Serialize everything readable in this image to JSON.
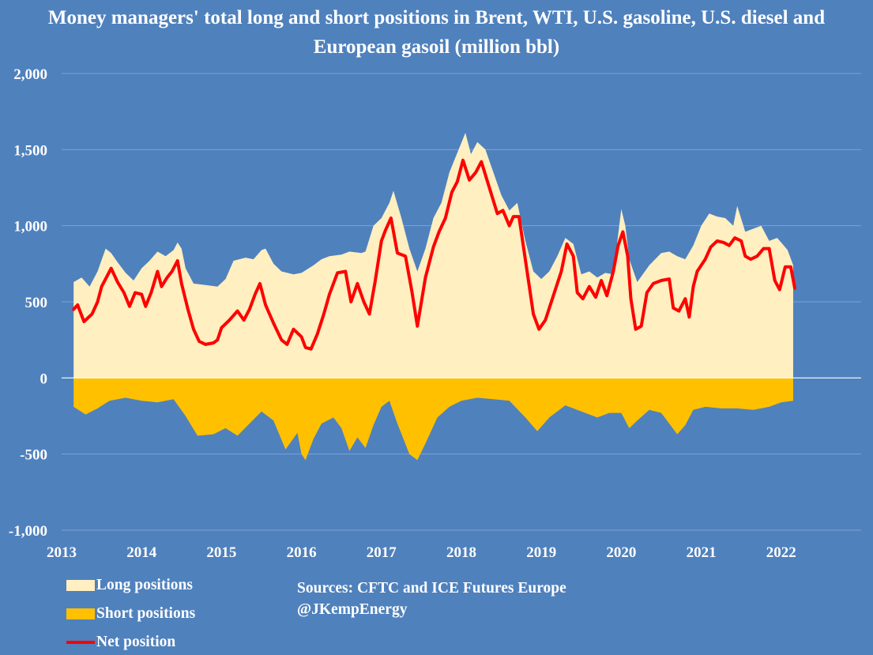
{
  "chart_data": {
    "type": "area",
    "title": "Money managers' total long and short positions in Brent, WTI, U.S. gasoline, U.S. diesel and European gasoil  (million bbl)",
    "xlabel": "",
    "ylabel": "",
    "xlim": [
      2013,
      2023
    ],
    "ylim": [
      -1000,
      2000
    ],
    "y_ticks": [
      2000,
      1500,
      1000,
      500,
      0,
      -500,
      -1000
    ],
    "y_tick_labels": [
      "2,000",
      "1,500",
      "1,000",
      "500",
      "0",
      "-500",
      "-1,000"
    ],
    "x_ticks": [
      2013,
      2014,
      2015,
      2016,
      2017,
      2018,
      2019,
      2020,
      2021,
      2022
    ],
    "x_tick_labels": [
      "2013",
      "2014",
      "2015",
      "2016",
      "2017",
      "2018",
      "2019",
      "2020",
      "2021",
      "2022"
    ],
    "grid": true,
    "legend_position": "bottom-left",
    "series": [
      {
        "name": "Long positions",
        "kind": "area",
        "color": "#ffefc1",
        "points": [
          [
            2013.15,
            630
          ],
          [
            2013.25,
            660
          ],
          [
            2013.35,
            600
          ],
          [
            2013.45,
            700
          ],
          [
            2013.55,
            850
          ],
          [
            2013.62,
            820
          ],
          [
            2013.7,
            760
          ],
          [
            2013.8,
            690
          ],
          [
            2013.9,
            640
          ],
          [
            2014.0,
            720
          ],
          [
            2014.1,
            770
          ],
          [
            2014.2,
            830
          ],
          [
            2014.3,
            800
          ],
          [
            2014.4,
            840
          ],
          [
            2014.45,
            890
          ],
          [
            2014.5,
            850
          ],
          [
            2014.55,
            720
          ],
          [
            2014.65,
            620
          ],
          [
            2014.8,
            610
          ],
          [
            2014.95,
            600
          ],
          [
            2015.05,
            650
          ],
          [
            2015.15,
            770
          ],
          [
            2015.3,
            790
          ],
          [
            2015.4,
            780
          ],
          [
            2015.5,
            840
          ],
          [
            2015.55,
            850
          ],
          [
            2015.65,
            750
          ],
          [
            2015.75,
            700
          ],
          [
            2015.9,
            680
          ],
          [
            2016.0,
            690
          ],
          [
            2016.15,
            740
          ],
          [
            2016.25,
            780
          ],
          [
            2016.35,
            800
          ],
          [
            2016.5,
            810
          ],
          [
            2016.6,
            830
          ],
          [
            2016.75,
            820
          ],
          [
            2016.8,
            830
          ],
          [
            2016.9,
            1000
          ],
          [
            2017.0,
            1050
          ],
          [
            2017.1,
            1150
          ],
          [
            2017.15,
            1230
          ],
          [
            2017.25,
            1050
          ],
          [
            2017.35,
            850
          ],
          [
            2017.45,
            700
          ],
          [
            2017.55,
            850
          ],
          [
            2017.65,
            1050
          ],
          [
            2017.75,
            1150
          ],
          [
            2017.85,
            1350
          ],
          [
            2017.95,
            1480
          ],
          [
            2018.05,
            1610
          ],
          [
            2018.12,
            1470
          ],
          [
            2018.2,
            1550
          ],
          [
            2018.3,
            1500
          ],
          [
            2018.4,
            1350
          ],
          [
            2018.5,
            1200
          ],
          [
            2018.6,
            1100
          ],
          [
            2018.7,
            1150
          ],
          [
            2018.8,
            900
          ],
          [
            2018.9,
            700
          ],
          [
            2019.0,
            650
          ],
          [
            2019.1,
            700
          ],
          [
            2019.2,
            800
          ],
          [
            2019.3,
            920
          ],
          [
            2019.4,
            880
          ],
          [
            2019.5,
            680
          ],
          [
            2019.6,
            700
          ],
          [
            2019.7,
            660
          ],
          [
            2019.8,
            690
          ],
          [
            2019.9,
            680
          ],
          [
            2020.0,
            1110
          ],
          [
            2020.05,
            1000
          ],
          [
            2020.1,
            780
          ],
          [
            2020.2,
            630
          ],
          [
            2020.35,
            740
          ],
          [
            2020.5,
            820
          ],
          [
            2020.6,
            830
          ],
          [
            2020.7,
            800
          ],
          [
            2020.8,
            780
          ],
          [
            2020.9,
            870
          ],
          [
            2021.0,
            1000
          ],
          [
            2021.1,
            1080
          ],
          [
            2021.2,
            1060
          ],
          [
            2021.3,
            1050
          ],
          [
            2021.4,
            1000
          ],
          [
            2021.45,
            1130
          ],
          [
            2021.55,
            960
          ],
          [
            2021.65,
            980
          ],
          [
            2021.75,
            1000
          ],
          [
            2021.85,
            900
          ],
          [
            2021.95,
            920
          ],
          [
            2022.0,
            890
          ],
          [
            2022.08,
            840
          ],
          [
            2022.15,
            740
          ]
        ]
      },
      {
        "name": "Short positions",
        "kind": "area",
        "color": "#ffc000",
        "points": [
          [
            2013.15,
            -190
          ],
          [
            2013.3,
            -240
          ],
          [
            2013.45,
            -200
          ],
          [
            2013.6,
            -150
          ],
          [
            2013.8,
            -130
          ],
          [
            2014.0,
            -150
          ],
          [
            2014.2,
            -160
          ],
          [
            2014.4,
            -140
          ],
          [
            2014.55,
            -250
          ],
          [
            2014.7,
            -380
          ],
          [
            2014.9,
            -370
          ],
          [
            2015.05,
            -330
          ],
          [
            2015.2,
            -380
          ],
          [
            2015.35,
            -300
          ],
          [
            2015.5,
            -220
          ],
          [
            2015.65,
            -280
          ],
          [
            2015.8,
            -470
          ],
          [
            2015.95,
            -360
          ],
          [
            2016.0,
            -500
          ],
          [
            2016.05,
            -540
          ],
          [
            2016.15,
            -400
          ],
          [
            2016.25,
            -300
          ],
          [
            2016.4,
            -260
          ],
          [
            2016.5,
            -330
          ],
          [
            2016.6,
            -480
          ],
          [
            2016.7,
            -390
          ],
          [
            2016.8,
            -460
          ],
          [
            2016.9,
            -310
          ],
          [
            2017.0,
            -190
          ],
          [
            2017.1,
            -150
          ],
          [
            2017.2,
            -300
          ],
          [
            2017.35,
            -500
          ],
          [
            2017.45,
            -540
          ],
          [
            2017.55,
            -430
          ],
          [
            2017.7,
            -260
          ],
          [
            2017.85,
            -190
          ],
          [
            2018.0,
            -150
          ],
          [
            2018.2,
            -130
          ],
          [
            2018.4,
            -140
          ],
          [
            2018.6,
            -150
          ],
          [
            2018.8,
            -260
          ],
          [
            2018.95,
            -350
          ],
          [
            2019.1,
            -260
          ],
          [
            2019.3,
            -180
          ],
          [
            2019.5,
            -220
          ],
          [
            2019.7,
            -260
          ],
          [
            2019.85,
            -230
          ],
          [
            2020.0,
            -230
          ],
          [
            2020.1,
            -330
          ],
          [
            2020.2,
            -280
          ],
          [
            2020.35,
            -210
          ],
          [
            2020.5,
            -230
          ],
          [
            2020.6,
            -300
          ],
          [
            2020.7,
            -370
          ],
          [
            2020.8,
            -310
          ],
          [
            2020.9,
            -210
          ],
          [
            2021.05,
            -190
          ],
          [
            2021.25,
            -200
          ],
          [
            2021.45,
            -200
          ],
          [
            2021.65,
            -210
          ],
          [
            2021.85,
            -190
          ],
          [
            2022.0,
            -160
          ],
          [
            2022.15,
            -150
          ]
        ]
      },
      {
        "name": "Net position",
        "kind": "line",
        "color": "#ff0000",
        "points": [
          [
            2013.15,
            450
          ],
          [
            2013.2,
            480
          ],
          [
            2013.28,
            370
          ],
          [
            2013.38,
            420
          ],
          [
            2013.45,
            500
          ],
          [
            2013.5,
            600
          ],
          [
            2013.55,
            650
          ],
          [
            2013.62,
            720
          ],
          [
            2013.7,
            630
          ],
          [
            2013.78,
            560
          ],
          [
            2013.85,
            470
          ],
          [
            2013.92,
            560
          ],
          [
            2014.0,
            550
          ],
          [
            2014.05,
            470
          ],
          [
            2014.12,
            560
          ],
          [
            2014.2,
            700
          ],
          [
            2014.25,
            600
          ],
          [
            2014.32,
            660
          ],
          [
            2014.38,
            700
          ],
          [
            2014.45,
            770
          ],
          [
            2014.5,
            620
          ],
          [
            2014.58,
            450
          ],
          [
            2014.65,
            320
          ],
          [
            2014.72,
            240
          ],
          [
            2014.8,
            220
          ],
          [
            2014.9,
            230
          ],
          [
            2014.95,
            250
          ],
          [
            2015.0,
            330
          ],
          [
            2015.1,
            380
          ],
          [
            2015.2,
            440
          ],
          [
            2015.28,
            380
          ],
          [
            2015.35,
            450
          ],
          [
            2015.42,
            550
          ],
          [
            2015.48,
            620
          ],
          [
            2015.55,
            480
          ],
          [
            2015.65,
            360
          ],
          [
            2015.75,
            250
          ],
          [
            2015.82,
            220
          ],
          [
            2015.9,
            320
          ],
          [
            2016.0,
            270
          ],
          [
            2016.05,
            200
          ],
          [
            2016.12,
            190
          ],
          [
            2016.2,
            290
          ],
          [
            2016.28,
            420
          ],
          [
            2016.35,
            550
          ],
          [
            2016.45,
            690
          ],
          [
            2016.55,
            700
          ],
          [
            2016.62,
            500
          ],
          [
            2016.7,
            620
          ],
          [
            2016.78,
            500
          ],
          [
            2016.85,
            420
          ],
          [
            2016.92,
            630
          ],
          [
            2017.0,
            900
          ],
          [
            2017.05,
            970
          ],
          [
            2017.12,
            1050
          ],
          [
            2017.2,
            820
          ],
          [
            2017.3,
            800
          ],
          [
            2017.38,
            570
          ],
          [
            2017.45,
            340
          ],
          [
            2017.55,
            660
          ],
          [
            2017.65,
            860
          ],
          [
            2017.72,
            960
          ],
          [
            2017.8,
            1050
          ],
          [
            2017.88,
            1220
          ],
          [
            2017.95,
            1290
          ],
          [
            2018.02,
            1430
          ],
          [
            2018.1,
            1300
          ],
          [
            2018.18,
            1350
          ],
          [
            2018.25,
            1420
          ],
          [
            2018.35,
            1250
          ],
          [
            2018.45,
            1080
          ],
          [
            2018.52,
            1100
          ],
          [
            2018.6,
            1000
          ],
          [
            2018.65,
            1060
          ],
          [
            2018.72,
            1060
          ],
          [
            2018.78,
            850
          ],
          [
            2018.85,
            600
          ],
          [
            2018.9,
            420
          ],
          [
            2018.97,
            320
          ],
          [
            2019.05,
            380
          ],
          [
            2019.15,
            540
          ],
          [
            2019.25,
            700
          ],
          [
            2019.32,
            880
          ],
          [
            2019.4,
            800
          ],
          [
            2019.45,
            560
          ],
          [
            2019.52,
            520
          ],
          [
            2019.6,
            600
          ],
          [
            2019.68,
            530
          ],
          [
            2019.75,
            640
          ],
          [
            2019.82,
            540
          ],
          [
            2019.9,
            700
          ],
          [
            2019.96,
            870
          ],
          [
            2020.02,
            960
          ],
          [
            2020.08,
            800
          ],
          [
            2020.12,
            520
          ],
          [
            2020.18,
            320
          ],
          [
            2020.25,
            340
          ],
          [
            2020.32,
            560
          ],
          [
            2020.4,
            620
          ],
          [
            2020.5,
            640
          ],
          [
            2020.6,
            650
          ],
          [
            2020.65,
            460
          ],
          [
            2020.72,
            440
          ],
          [
            2020.8,
            520
          ],
          [
            2020.85,
            400
          ],
          [
            2020.9,
            600
          ],
          [
            2020.95,
            700
          ],
          [
            2021.05,
            780
          ],
          [
            2021.12,
            860
          ],
          [
            2021.2,
            900
          ],
          [
            2021.28,
            890
          ],
          [
            2021.35,
            870
          ],
          [
            2021.42,
            920
          ],
          [
            2021.5,
            900
          ],
          [
            2021.55,
            800
          ],
          [
            2021.62,
            780
          ],
          [
            2021.7,
            800
          ],
          [
            2021.78,
            850
          ],
          [
            2021.85,
            850
          ],
          [
            2021.92,
            640
          ],
          [
            2021.98,
            580
          ],
          [
            2022.05,
            730
          ],
          [
            2022.12,
            730
          ],
          [
            2022.17,
            590
          ]
        ]
      }
    ]
  },
  "legend": {
    "long_label": "Long positions",
    "short_label": "Short positions",
    "net_label": "Net position"
  },
  "footnote": {
    "sources": "Sources: CFTC and ICE Futures Europe",
    "handle": "@JKempEnergy"
  },
  "colors": {
    "background": "#4f81bd",
    "gridline": "#7fa3d3",
    "long": "#ffefc1",
    "short": "#ffc000",
    "net": "#ff0000"
  }
}
